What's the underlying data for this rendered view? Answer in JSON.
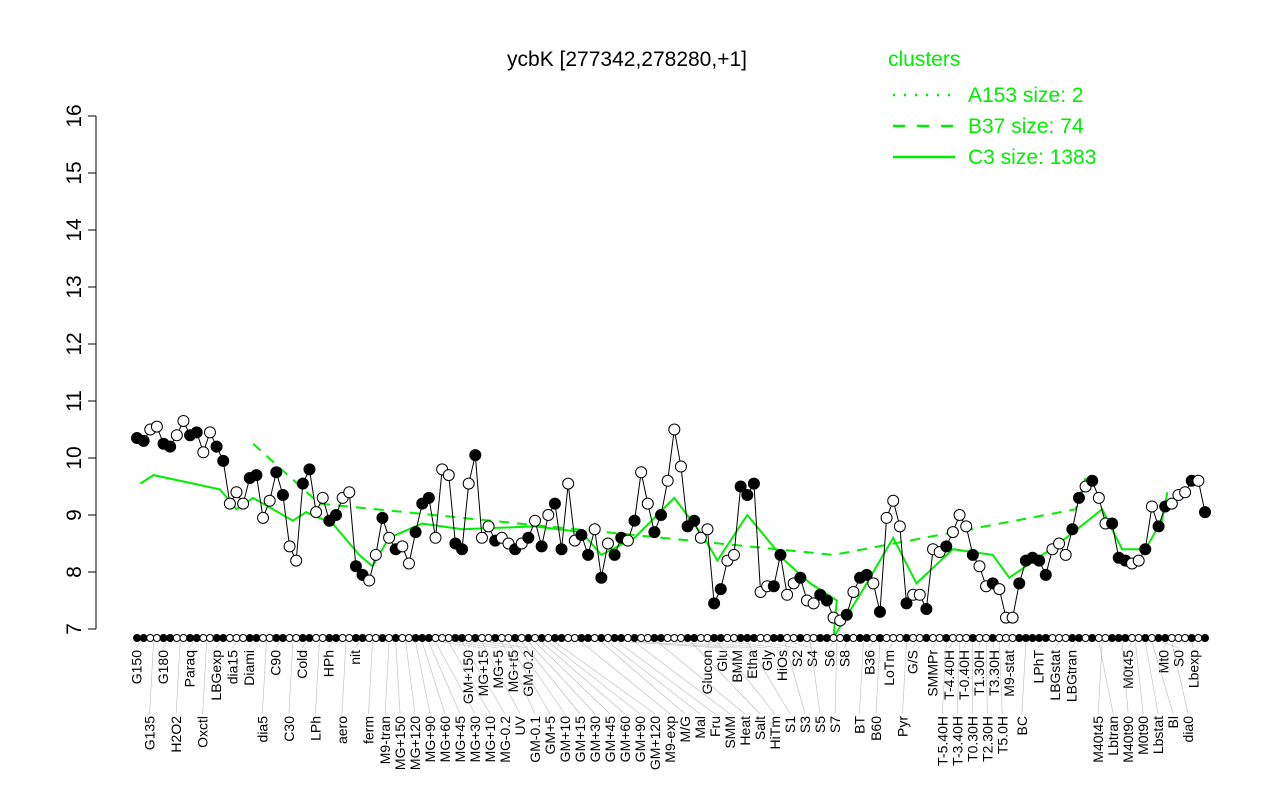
{
  "chart_data": {
    "type": "line",
    "title": "ycbK [277342,278280,+1]",
    "xlabel": "",
    "ylabel": "",
    "ylim": [
      7,
      16
    ],
    "yticks": [
      7,
      8,
      9,
      10,
      11,
      12,
      13,
      14,
      15,
      16
    ],
    "grid": false,
    "legend": {
      "title": "clusters",
      "placement": "top-right",
      "color": "#00ee00",
      "entries": [
        {
          "label": "A153 size: 2",
          "style": "dotted"
        },
        {
          "label": "B37 size: 74",
          "style": "dashed"
        },
        {
          "label": "C3 size: 1383",
          "style": "solid"
        }
      ]
    },
    "colors": {
      "points": "#000000",
      "clusters": "#00ee00"
    },
    "points": [
      {
        "x": "G150",
        "y": 10.35,
        "filled": true
      },
      {
        "x": "G150",
        "y": 10.3,
        "filled": true
      },
      {
        "x": "G135",
        "y": 10.5,
        "filled": false
      },
      {
        "x": "G135",
        "y": 10.55,
        "filled": false
      },
      {
        "x": "G180",
        "y": 10.25,
        "filled": true
      },
      {
        "x": "G180",
        "y": 10.2,
        "filled": true
      },
      {
        "x": "H2O2",
        "y": 10.4,
        "filled": false
      },
      {
        "x": "H2O2",
        "y": 10.65,
        "filled": false
      },
      {
        "x": "Paraq",
        "y": 10.4,
        "filled": true
      },
      {
        "x": "Paraq",
        "y": 10.45,
        "filled": true
      },
      {
        "x": "Oxctl",
        "y": 10.1,
        "filled": false
      },
      {
        "x": "Oxctl",
        "y": 10.45,
        "filled": false
      },
      {
        "x": "LBGexp",
        "y": 10.2,
        "filled": true
      },
      {
        "x": "LBGexp",
        "y": 9.95,
        "filled": true
      },
      {
        "x": "dia15",
        "y": 9.2,
        "filled": false
      },
      {
        "x": "dia15",
        "y": 9.4,
        "filled": false
      },
      {
        "x": "dia15",
        "y": 9.2,
        "filled": false
      },
      {
        "x": "Diami",
        "y": 9.65,
        "filled": true
      },
      {
        "x": "Diami",
        "y": 9.7,
        "filled": true
      },
      {
        "x": "dia5",
        "y": 8.95,
        "filled": false
      },
      {
        "x": "dia5",
        "y": 9.25,
        "filled": false
      },
      {
        "x": "C90",
        "y": 9.75,
        "filled": true
      },
      {
        "x": "C90",
        "y": 9.35,
        "filled": true
      },
      {
        "x": "C30",
        "y": 8.45,
        "filled": false
      },
      {
        "x": "C30",
        "y": 8.2,
        "filled": false
      },
      {
        "x": "Cold",
        "y": 9.55,
        "filled": true
      },
      {
        "x": "Cold",
        "y": 9.8,
        "filled": true
      },
      {
        "x": "LPh",
        "y": 9.05,
        "filled": false
      },
      {
        "x": "LPh",
        "y": 9.3,
        "filled": false
      },
      {
        "x": "HPh",
        "y": 8.9,
        "filled": true
      },
      {
        "x": "HPh",
        "y": 9.0,
        "filled": true
      },
      {
        "x": "aero",
        "y": 9.3,
        "filled": false
      },
      {
        "x": "aero",
        "y": 9.4,
        "filled": false
      },
      {
        "x": "nit",
        "y": 8.1,
        "filled": true
      },
      {
        "x": "nit",
        "y": 7.95,
        "filled": true
      },
      {
        "x": "ferm",
        "y": 7.85,
        "filled": false
      },
      {
        "x": "ferm",
        "y": 8.3,
        "filled": false
      },
      {
        "x": "GM+150",
        "y": 8.95,
        "filled": true
      },
      {
        "x": "M9-tran",
        "y": 8.6,
        "filled": false
      },
      {
        "x": "MG+150",
        "y": 8.4,
        "filled": true
      },
      {
        "x": "MG+120",
        "y": 8.45,
        "filled": false
      },
      {
        "x": "MG+120",
        "y": 8.15,
        "filled": false
      },
      {
        "x": "MG+90",
        "y": 8.7,
        "filled": true
      },
      {
        "x": "MG+60",
        "y": 9.2,
        "filled": true
      },
      {
        "x": "MG+45",
        "y": 9.3,
        "filled": true
      },
      {
        "x": "MG+30",
        "y": 8.6,
        "filled": false
      },
      {
        "x": "MG+15",
        "y": 9.8,
        "filled": false
      },
      {
        "x": "MG+10",
        "y": 9.7,
        "filled": false
      },
      {
        "x": "MG+5",
        "y": 8.5,
        "filled": true
      },
      {
        "x": "MG-0.2",
        "y": 8.4,
        "filled": true
      },
      {
        "x": "MG+t5",
        "y": 9.55,
        "filled": false
      },
      {
        "x": "MG+t5",
        "y": 10.05,
        "filled": true
      },
      {
        "x": "UV",
        "y": 8.6,
        "filled": false
      },
      {
        "x": "GM-0.2",
        "y": 8.8,
        "filled": false
      },
      {
        "x": "Glucon",
        "y": 8.55,
        "filled": true
      },
      {
        "x": "GM-0.1",
        "y": 8.6,
        "filled": false
      },
      {
        "x": "GM+5",
        "y": 8.5,
        "filled": false
      },
      {
        "x": "GM+10",
        "y": 8.4,
        "filled": true
      },
      {
        "x": "GM+15",
        "y": 8.5,
        "filled": false
      },
      {
        "x": "GM+30",
        "y": 8.6,
        "filled": true
      },
      {
        "x": "GM+45",
        "y": 8.9,
        "filled": false
      },
      {
        "x": "GM+60",
        "y": 8.45,
        "filled": true
      },
      {
        "x": "GM+90",
        "y": 9.0,
        "filled": false
      },
      {
        "x": "GM+120",
        "y": 9.2,
        "filled": true
      },
      {
        "x": "GM+150",
        "y": 8.4,
        "filled": true
      },
      {
        "x": "M9-exp",
        "y": 9.55,
        "filled": false
      },
      {
        "x": "M9-exp",
        "y": 8.55,
        "filled": false
      },
      {
        "x": "M9-exp",
        "y": 8.65,
        "filled": true
      },
      {
        "x": "M9-exp",
        "y": 8.3,
        "filled": true
      },
      {
        "x": "M9-exp",
        "y": 8.75,
        "filled": false
      },
      {
        "x": "M/G",
        "y": 7.9,
        "filled": true
      },
      {
        "x": "Mal",
        "y": 8.5,
        "filled": false
      },
      {
        "x": "Fru",
        "y": 8.3,
        "filled": true
      },
      {
        "x": "Fru",
        "y": 8.6,
        "filled": true
      },
      {
        "x": "Glu",
        "y": 8.55,
        "filled": false
      },
      {
        "x": "SMM",
        "y": 8.9,
        "filled": true
      },
      {
        "x": "BMM",
        "y": 9.75,
        "filled": false
      },
      {
        "x": "BMM",
        "y": 9.2,
        "filled": false
      },
      {
        "x": "Heat",
        "y": 8.7,
        "filled": true
      },
      {
        "x": "Heat",
        "y": 9.0,
        "filled": true
      },
      {
        "x": "Etha",
        "y": 9.6,
        "filled": false
      },
      {
        "x": "Etha",
        "y": 10.5,
        "filled": false
      },
      {
        "x": "Etha",
        "y": 9.85,
        "filled": false
      },
      {
        "x": "Salt",
        "y": 8.8,
        "filled": true
      },
      {
        "x": "Salt",
        "y": 8.9,
        "filled": true
      },
      {
        "x": "Gly",
        "y": 8.6,
        "filled": false
      },
      {
        "x": "Gly",
        "y": 8.75,
        "filled": false
      },
      {
        "x": "HiTm",
        "y": 7.45,
        "filled": true
      },
      {
        "x": "HiTm",
        "y": 7.7,
        "filled": true
      },
      {
        "x": "HiOs",
        "y": 8.2,
        "filled": false
      },
      {
        "x": "HiOs",
        "y": 8.3,
        "filled": false
      },
      {
        "x": "S1",
        "y": 9.5,
        "filled": true
      },
      {
        "x": "S1",
        "y": 9.35,
        "filled": true
      },
      {
        "x": "S1",
        "y": 9.55,
        "filled": true
      },
      {
        "x": "S2",
        "y": 7.65,
        "filled": false
      },
      {
        "x": "S2",
        "y": 7.75,
        "filled": false
      },
      {
        "x": "S3",
        "y": 7.75,
        "filled": true
      },
      {
        "x": "S3",
        "y": 8.3,
        "filled": true
      },
      {
        "x": "S4",
        "y": 7.6,
        "filled": false
      },
      {
        "x": "S4",
        "y": 7.8,
        "filled": false
      },
      {
        "x": "S3",
        "y": 7.9,
        "filled": true
      },
      {
        "x": "S5",
        "y": 7.5,
        "filled": false
      },
      {
        "x": "S5",
        "y": 7.45,
        "filled": false
      },
      {
        "x": "S6",
        "y": 7.6,
        "filled": true
      },
      {
        "x": "S6",
        "y": 7.5,
        "filled": true
      },
      {
        "x": "S7",
        "y": 7.2,
        "filled": false
      },
      {
        "x": "S7",
        "y": 7.15,
        "filled": false
      },
      {
        "x": "S8",
        "y": 7.25,
        "filled": true
      },
      {
        "x": "S6",
        "y": 7.65,
        "filled": false
      },
      {
        "x": "BT",
        "y": 7.9,
        "filled": true
      },
      {
        "x": "BT",
        "y": 7.95,
        "filled": true
      },
      {
        "x": "B36",
        "y": 7.8,
        "filled": false
      },
      {
        "x": "B60",
        "y": 7.3,
        "filled": true
      },
      {
        "x": "LoTm",
        "y": 8.95,
        "filled": false
      },
      {
        "x": "LoTm",
        "y": 9.25,
        "filled": false
      },
      {
        "x": "LoTm",
        "y": 8.8,
        "filled": false
      },
      {
        "x": "Pyr",
        "y": 7.45,
        "filled": true
      },
      {
        "x": "G/S",
        "y": 7.6,
        "filled": false
      },
      {
        "x": "G/S",
        "y": 7.6,
        "filled": false
      },
      {
        "x": "Glucon",
        "y": 7.35,
        "filled": true
      },
      {
        "x": "SMMPr",
        "y": 8.4,
        "filled": false
      },
      {
        "x": "SMMPr",
        "y": 8.35,
        "filled": false
      },
      {
        "x": "T-5.40H",
        "y": 8.45,
        "filled": true
      },
      {
        "x": "T-4.40H",
        "y": 8.7,
        "filled": false
      },
      {
        "x": "T-3.40H",
        "y": 9.0,
        "filled": false
      },
      {
        "x": "T-0.40H",
        "y": 8.8,
        "filled": false
      },
      {
        "x": "T0.30H",
        "y": 8.3,
        "filled": true
      },
      {
        "x": "T1.30H",
        "y": 8.1,
        "filled": false
      },
      {
        "x": "T2.30H",
        "y": 7.75,
        "filled": false
      },
      {
        "x": "T3.30H",
        "y": 7.8,
        "filled": true
      },
      {
        "x": "T5.0H",
        "y": 7.7,
        "filled": false
      },
      {
        "x": "M9-stat",
        "y": 7.2,
        "filled": false
      },
      {
        "x": "M9-stat",
        "y": 7.2,
        "filled": false
      },
      {
        "x": "BC",
        "y": 7.8,
        "filled": true
      },
      {
        "x": "BC",
        "y": 8.2,
        "filled": true
      },
      {
        "x": "BC",
        "y": 8.25,
        "filled": true
      },
      {
        "x": "LPhT",
        "y": 8.2,
        "filled": true
      },
      {
        "x": "LPhT",
        "y": 7.95,
        "filled": true
      },
      {
        "x": "LBGstat",
        "y": 8.4,
        "filled": false
      },
      {
        "x": "LBGstat",
        "y": 8.5,
        "filled": false
      },
      {
        "x": "LBGstat",
        "y": 8.3,
        "filled": false
      },
      {
        "x": "LBGtran",
        "y": 8.75,
        "filled": true
      },
      {
        "x": "LBGtran",
        "y": 9.3,
        "filled": true
      },
      {
        "x": "M0t45",
        "y": 9.5,
        "filled": false
      },
      {
        "x": "M40t45",
        "y": 9.6,
        "filled": true
      },
      {
        "x": "Lbtran",
        "y": 9.3,
        "filled": false
      },
      {
        "x": "Mt0",
        "y": 8.85,
        "filled": false
      },
      {
        "x": "M40t45",
        "y": 8.85,
        "filled": true
      },
      {
        "x": "M40t90",
        "y": 8.25,
        "filled": true
      },
      {
        "x": "M40t90",
        "y": 8.2,
        "filled": true
      },
      {
        "x": "M0t90",
        "y": 8.15,
        "filled": false
      },
      {
        "x": "M0t90",
        "y": 8.2,
        "filled": false
      },
      {
        "x": "Lbstat",
        "y": 8.4,
        "filled": true
      },
      {
        "x": "Bl",
        "y": 9.15,
        "filled": false
      },
      {
        "x": "S0",
        "y": 8.8,
        "filled": true
      },
      {
        "x": "S0",
        "y": 9.15,
        "filled": true
      },
      {
        "x": "dia0",
        "y": 9.2,
        "filled": false
      },
      {
        "x": "M0t45",
        "y": 9.35,
        "filled": false
      },
      {
        "x": "Lbexp",
        "y": 9.4,
        "filled": false
      },
      {
        "x": "Mt0",
        "y": 9.6,
        "filled": true
      },
      {
        "x": "Lbexp",
        "y": 9.6,
        "filled": false
      },
      {
        "x": "Mt0",
        "y": 9.05,
        "filled": true
      }
    ],
    "series": [
      {
        "name": "C3 size: 1383",
        "style": "solid",
        "x": [
          "G150",
          "G135",
          "Paraq",
          "LBGexp",
          "dia15",
          "Diami",
          "C30",
          "Cold",
          "HPh",
          "nit",
          "ferm",
          "M9-tran",
          "MG+60",
          "MG-0.2",
          "GM+45",
          "M9-exp",
          "M/G",
          "SMM",
          "Etha",
          "Gly",
          "HiTm",
          "S1",
          "S3",
          "S5",
          "S7",
          "S6",
          "BT",
          "LoTm",
          "G/S",
          "T-4.40H",
          "T3.30H",
          "M9-stat",
          "BC",
          "LBGstat",
          "M40t45",
          "M40t90",
          "Lbstat",
          "S0",
          "Mt0"
        ],
        "y": [
          9.55,
          9.7,
          9.55,
          9.45,
          9.1,
          9.3,
          8.9,
          9.05,
          8.85,
          8.3,
          8.1,
          8.6,
          8.85,
          8.75,
          8.8,
          8.7,
          8.3,
          8.6,
          9.3,
          8.6,
          8.2,
          9.0,
          8.2,
          7.8,
          7.5,
          6.85,
          7.7,
          8.6,
          7.8,
          8.4,
          8.3,
          7.9,
          8.1,
          8.5,
          9.1,
          8.4,
          8.4,
          8.9,
          9.4
        ]
      },
      {
        "name": "B37 size: 74",
        "style": "dashed",
        "x": [
          "Diami",
          "LPh",
          "S6",
          "LBGtran",
          "LBGtran"
        ],
        "y": [
          10.25,
          9.2,
          8.3,
          9.1,
          9.65
        ]
      },
      {
        "name": "A153 size: 2",
        "style": "dotted",
        "x": [],
        "y": []
      }
    ]
  }
}
